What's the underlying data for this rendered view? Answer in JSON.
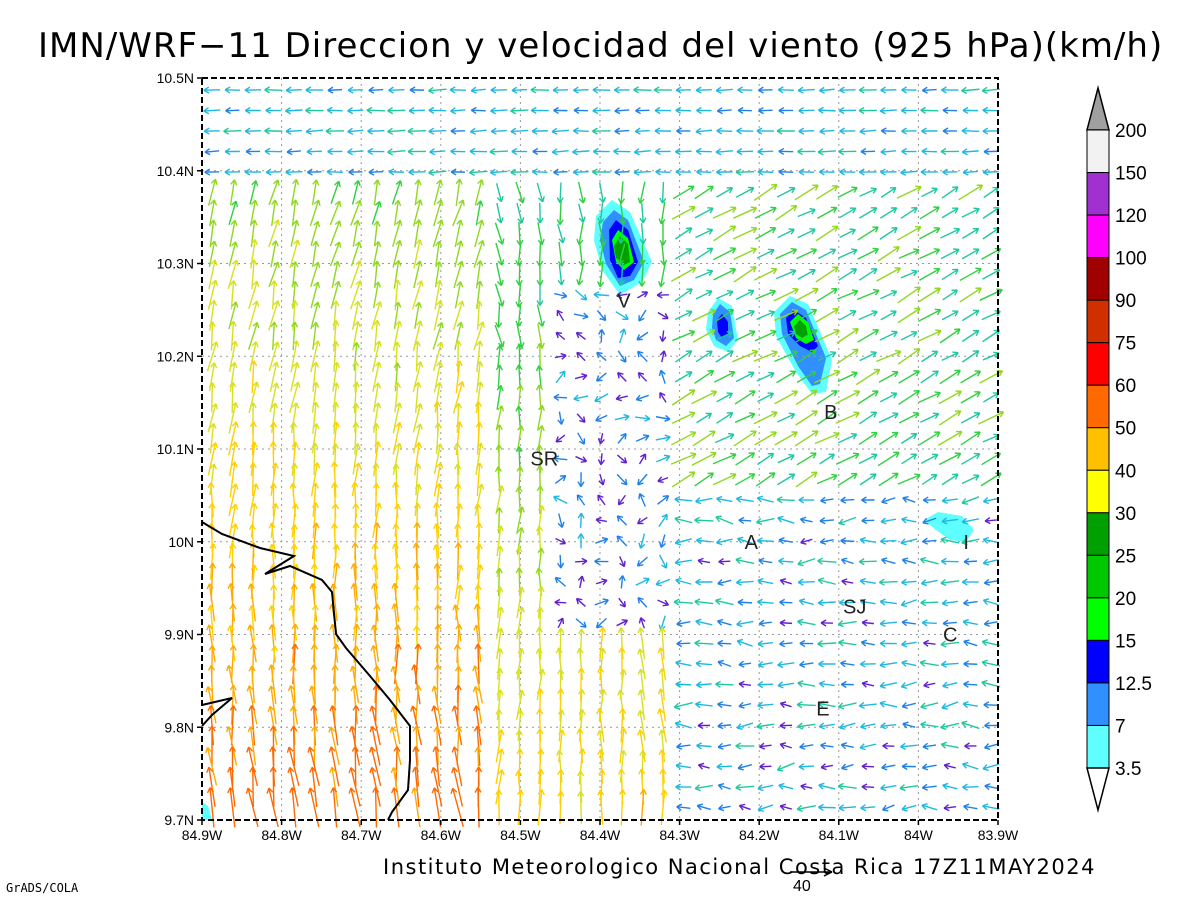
{
  "title": "IMN/WRF−11 Direccion y velocidad del viento (925 hPa)(km/h)",
  "credit": "Instituto Meteorologico Nacional Costa Rica 17Z11MAY2024",
  "software": "GrADS/COLA",
  "reference_vector": {
    "label": "40",
    "speed_kmh": 40
  },
  "map": {
    "lon_range": [
      -84.9,
      -83.9
    ],
    "lat_range": [
      9.7,
      10.5
    ],
    "grid": "dotted",
    "x_ticks": [
      "84.9W",
      "84.8W",
      "84.7W",
      "84.6W",
      "84.5W",
      "84.4W",
      "84.3W",
      "84.2W",
      "84.1W",
      "84W",
      "83.9W"
    ],
    "y_ticks": [
      "9.7N",
      "9.8N",
      "9.9N",
      "10N",
      "10.1N",
      "10.2N",
      "10.3N",
      "10.4N",
      "10.5N"
    ]
  },
  "places": [
    {
      "name": "SR",
      "lon": -84.47,
      "lat": 10.09
    },
    {
      "name": "V",
      "lon": -84.37,
      "lat": 10.26
    },
    {
      "name": "B",
      "lon": -84.11,
      "lat": 10.14
    },
    {
      "name": "A",
      "lon": -84.21,
      "lat": 10.0
    },
    {
      "name": "I",
      "lon": -83.94,
      "lat": 10.0
    },
    {
      "name": "SJ",
      "lon": -84.08,
      "lat": 9.93
    },
    {
      "name": "C",
      "lon": -83.96,
      "lat": 9.9
    },
    {
      "name": "E",
      "lon": -84.12,
      "lat": 9.82
    }
  ],
  "legend": {
    "levels": [
      "200",
      "150",
      "120",
      "100",
      "90",
      "75",
      "60",
      "50",
      "40",
      "30",
      "25",
      "20",
      "15",
      "12.5",
      "7",
      "3.5"
    ],
    "colors": [
      "#a0a0a0",
      "#f2f2f2",
      "#a030d0",
      "#ff00ff",
      "#a00000",
      "#d03000",
      "#ff0000",
      "#ff6a00",
      "#ffc000",
      "#ffff00",
      "#00a000",
      "#00c800",
      "#00ff00",
      "#0000ff",
      "#3090ff",
      "#60ffff"
    ]
  }
}
